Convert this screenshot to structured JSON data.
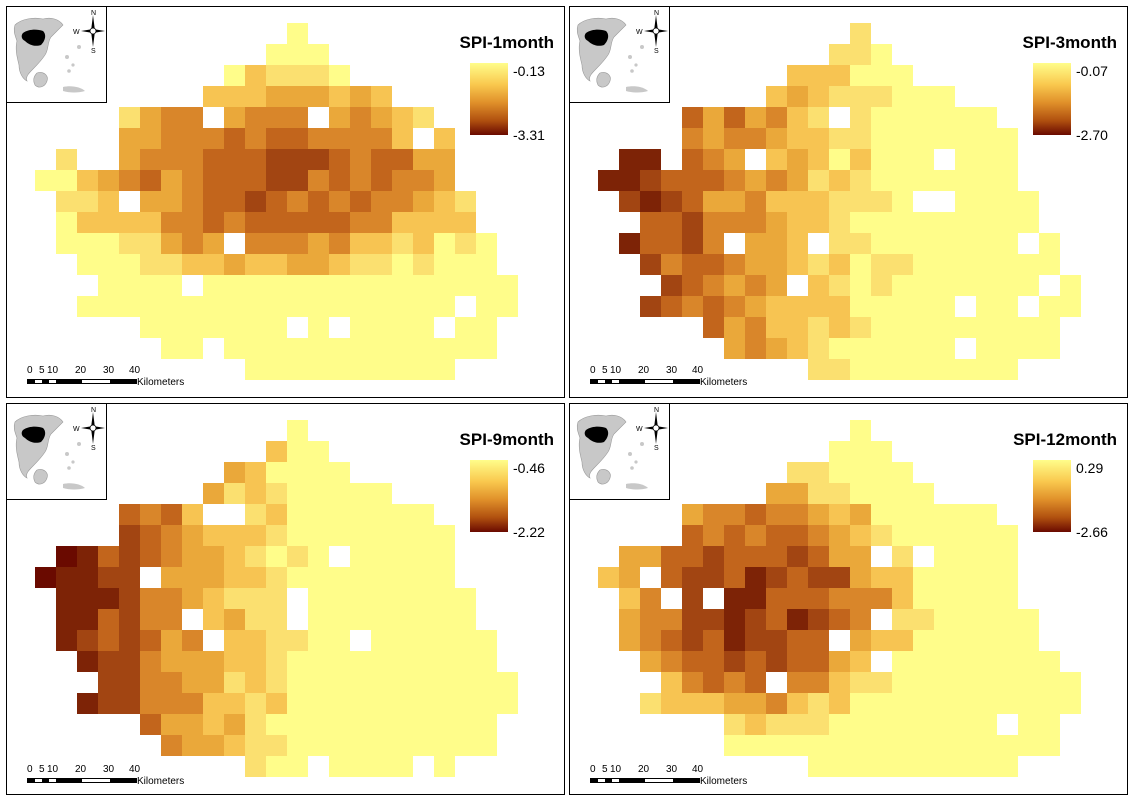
{
  "panels": [
    {
      "title": "SPI-1month",
      "legend_max": "-0.13",
      "legend_min": "-3.31",
      "pattern": "north_and_central_dry",
      "accent_dark": "#6a0a00",
      "accent_light": "#fffd8a"
    },
    {
      "title": "SPI-3month",
      "legend_max": "-0.07",
      "legend_min": "-2.70",
      "pattern": "west_dry",
      "accent_dark": "#6a0a00",
      "accent_light": "#fffd8a"
    },
    {
      "title": "SPI-9month",
      "legend_max": "-0.46",
      "legend_min": "-2.22",
      "pattern": "west_dry_strong",
      "accent_dark": "#6a0a00",
      "accent_light": "#fffd8a"
    },
    {
      "title": "SPI-12month",
      "legend_max": "0.29",
      "legend_min": "-2.66",
      "pattern": "center_west_dry",
      "accent_dark": "#6a0a00",
      "accent_light": "#fffd8a"
    }
  ],
  "scale": {
    "ticks": [
      "0",
      "5",
      "10",
      "20",
      "30",
      "40"
    ],
    "unit": "Kilometers"
  },
  "compass": {
    "n": "N",
    "s": "S",
    "e": "E",
    "w": "W",
    "icon": "compass-rose-icon"
  },
  "inset_icon": "greece-locator-map-icon"
}
